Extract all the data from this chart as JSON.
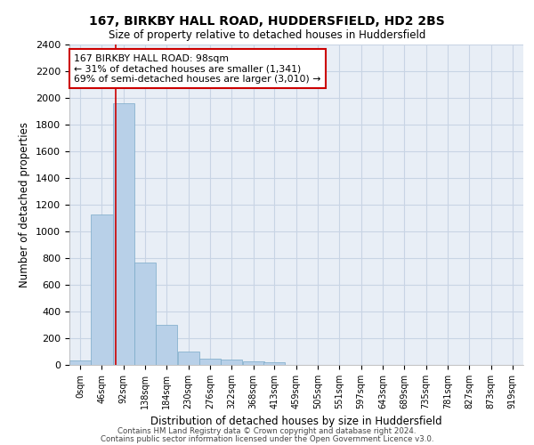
{
  "title": "167, BIRKBY HALL ROAD, HUDDERSFIELD, HD2 2BS",
  "subtitle": "Size of property relative to detached houses in Huddersfield",
  "xlabel": "Distribution of detached houses by size in Huddersfield",
  "ylabel": "Number of detached properties",
  "footer_line1": "Contains HM Land Registry data © Crown copyright and database right 2024.",
  "footer_line2": "Contains public sector information licensed under the Open Government Licence v3.0.",
  "bin_labels": [
    "0sqm",
    "46sqm",
    "92sqm",
    "138sqm",
    "184sqm",
    "230sqm",
    "276sqm",
    "322sqm",
    "368sqm",
    "413sqm",
    "459sqm",
    "505sqm",
    "551sqm",
    "597sqm",
    "643sqm",
    "689sqm",
    "735sqm",
    "781sqm",
    "827sqm",
    "873sqm",
    "919sqm"
  ],
  "bar_values": [
    35,
    1130,
    1960,
    770,
    300,
    100,
    45,
    40,
    30,
    20,
    0,
    0,
    0,
    0,
    0,
    0,
    0,
    0,
    0,
    0
  ],
  "bar_color": "#b8d0e8",
  "bar_edge_color": "#7aaac8",
  "grid_color": "#c8d4e4",
  "background_color": "#e8eef6",
  "annotation_line1": "167 BIRKBY HALL ROAD: 98sqm",
  "annotation_line2": "← 31% of detached houses are smaller (1,341)",
  "annotation_line3": "69% of semi-detached houses are larger (3,010) →",
  "annotation_box_color": "#ffffff",
  "annotation_box_edge_color": "#cc0000",
  "vline_x": 98,
  "vline_color": "#cc0000",
  "ylim": [
    0,
    2400
  ],
  "yticks": [
    0,
    200,
    400,
    600,
    800,
    1000,
    1200,
    1400,
    1600,
    1800,
    2000,
    2200,
    2400
  ],
  "bin_edges": [
    0,
    46,
    92,
    138,
    184,
    230,
    276,
    322,
    368,
    413,
    459,
    505,
    551,
    597,
    643,
    689,
    735,
    781,
    827,
    873,
    919
  ],
  "bin_width": 46
}
